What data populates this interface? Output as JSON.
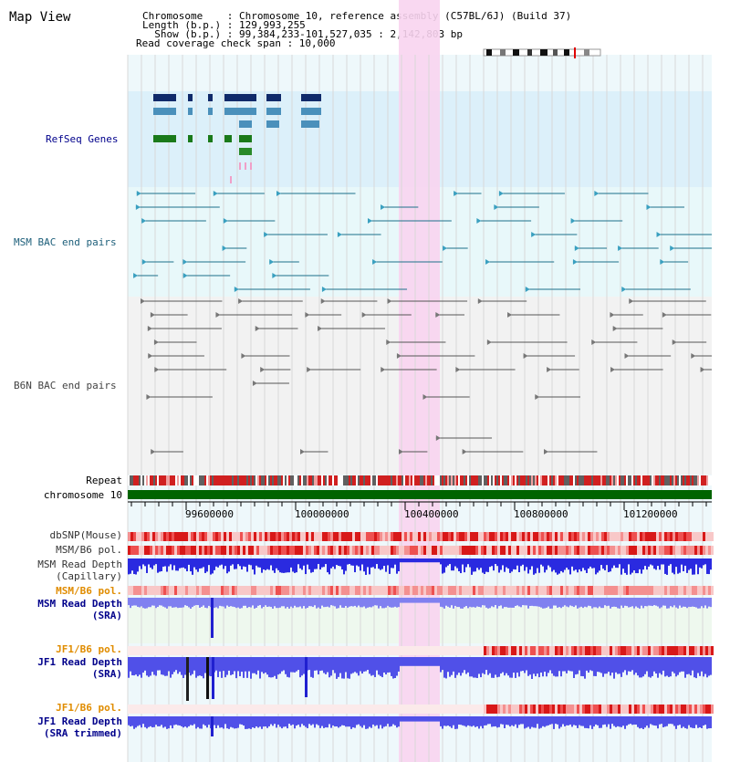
{
  "title": "Map View",
  "header": {
    "lines": [
      "Chromosome    : Chromosome 10, reference assembly (C57BL/6J) (Build 37)",
      "Length (b.p.) : 129,993,255",
      "  Show (b.p.) : 99,384,233-101,527,035 : 2,142,803 bp",
      "Read coverage check span : 10,000"
    ]
  },
  "tracks": {
    "refseq": "RefSeq Genes",
    "msm_bac": "MSM BAC end pairs",
    "b6n_bac": "B6N BAC end pairs",
    "repeat": "Repeat",
    "chromosome": "chromosome 10",
    "dbsnp": "dbSNP(Mouse)",
    "msm_b6_pol_1": "MSM/B6 pol.",
    "msm_depth_cap": [
      "MSM Read Depth",
      "(Capillary)"
    ],
    "msm_b6_pol_2": "MSM/B6 pol.",
    "msm_depth_sra": [
      "MSM Read Depth",
      "(SRA)"
    ],
    "jf1_b6_pol_1": "JF1/B6 pol.",
    "jf1_depth_sra": [
      "JF1 Read Depth",
      "(SRA)"
    ],
    "jf1_b6_pol_2": "JF1/B6 pol.",
    "jf1_depth_trim": [
      "JF1 Read Depth",
      "(SRA trimmed)"
    ]
  },
  "ruler": {
    "ticks": [
      "99600000",
      "100000000",
      "100400000",
      "100800000",
      "101200000"
    ]
  },
  "colors": {
    "refseq_bg": "#dcf0fa",
    "highlight": "#f8d4f0",
    "chrom_bar": "#006400",
    "depth_blue": "#3030e0",
    "pol_red": "#e03030",
    "label_blue": "#00008b",
    "label_teal": "#1d5f7a",
    "label_gray": "#444444",
    "label_orange": "#e08c00"
  }
}
